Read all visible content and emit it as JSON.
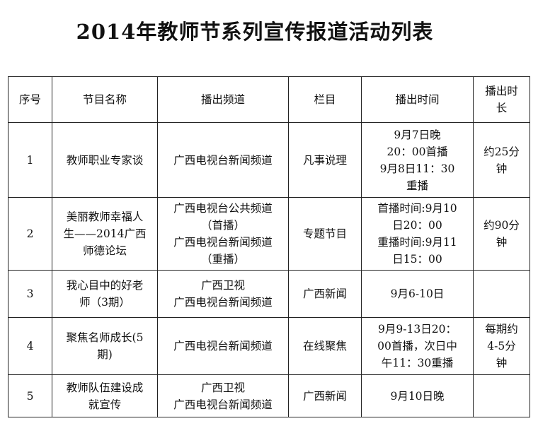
{
  "title": "2014年教师节系列宣传报道活动列表",
  "table": {
    "headers": [
      "序号",
      "节目名称",
      "播出频道",
      "栏目",
      "播出时间",
      "播出时长"
    ],
    "rows": [
      {
        "no": "1",
        "name": [
          "教师职业专家谈"
        ],
        "channel": [
          "广西电视台新闻频道"
        ],
        "column": "凡事说理",
        "time": [
          "9月7日晚",
          "20：00首播",
          "9月8日11：30",
          "重播"
        ],
        "duration": [
          "约25分",
          "钟"
        ]
      },
      {
        "no": "2",
        "name": [
          "美丽教师幸福人",
          "生——2014广西",
          "师德论坛"
        ],
        "channel": [
          "广西电视台公共频道",
          "（首播）",
          "广西电视台新闻频道",
          "（重播）"
        ],
        "column": "专题节目",
        "time": [
          "首播时间:9月10",
          "日20：00",
          "重播时间:9月11",
          "日15：00"
        ],
        "duration": [
          "约90分",
          "钟"
        ]
      },
      {
        "no": "3",
        "name": [
          "我心目中的好老",
          "师（3期）"
        ],
        "channel": [
          "广西卫视",
          "广西电视台新闻频道"
        ],
        "column": "广西新闻",
        "time": [
          "9月6-10日"
        ],
        "duration": []
      },
      {
        "no": "4",
        "name": [
          "聚焦名师成长(5",
          "期)"
        ],
        "channel": [
          "广西电视台新闻频道"
        ],
        "column": "在线聚焦",
        "time": [
          "9月9-13日20：",
          "00首播，次日中",
          "午11：30重播"
        ],
        "duration": [
          "每期约",
          "4-5分",
          "钟"
        ]
      },
      {
        "no": "5",
        "name": [
          "教师队伍建设成",
          "就宣传"
        ],
        "channel": [
          "广西卫视",
          "广西电视台新闻频道"
        ],
        "column": "广西新闻",
        "time": [
          "9月10日晚"
        ],
        "duration": []
      }
    ]
  }
}
